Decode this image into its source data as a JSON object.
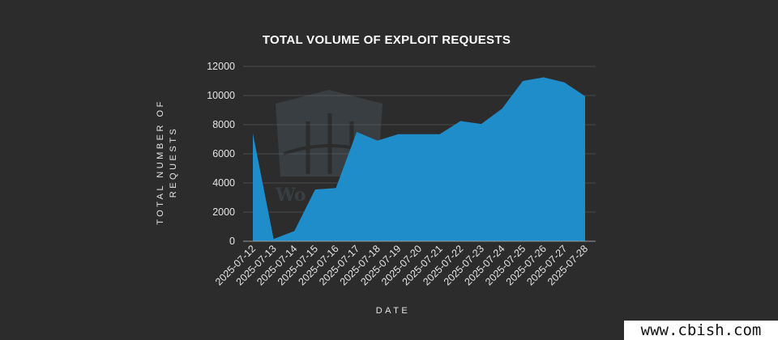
{
  "chart_data": {
    "type": "area",
    "title": "TOTAL VOLUME OF EXPLOIT REQUESTS",
    "xlabel": "DATE",
    "ylabel_lines": [
      "TOTAL NUMBER OF",
      "REQUESTS"
    ],
    "x": [
      "2025-07-12",
      "2025-07-13",
      "2025-07-14",
      "2025-07-15",
      "2025-07-16",
      "2025-07-17",
      "2025-07-18",
      "2025-07-19",
      "2025-07-20",
      "2025-07-21",
      "2025-07-22",
      "2025-07-23",
      "2025-07-24",
      "2025-07-25",
      "2025-07-26",
      "2025-07-27",
      "2025-07-28"
    ],
    "values": [
      7400,
      150,
      700,
      3550,
      3650,
      7500,
      6900,
      7350,
      7350,
      7350,
      8250,
      8050,
      9100,
      11000,
      11250,
      10900,
      9950
    ],
    "ylim": [
      0,
      12000
    ],
    "yticks": [
      0,
      2000,
      4000,
      6000,
      8000,
      10000,
      12000
    ],
    "grid": true,
    "colors": {
      "area": "#1f8dc9",
      "grid": "#4a4a4a",
      "text": "#e6e6e6",
      "background": "#2c2c2c"
    }
  },
  "watermark": {
    "text": "Wo"
  },
  "footer": {
    "site": "www.cbish.com"
  }
}
